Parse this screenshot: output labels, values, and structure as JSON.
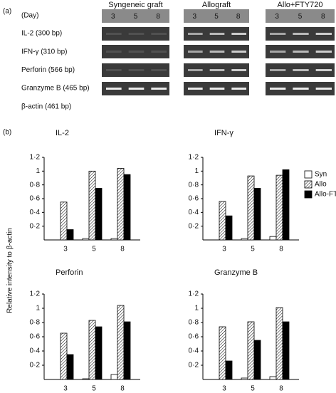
{
  "gel": {
    "panel_label": "(a)",
    "headers": [
      "Syngeneic graft",
      "Allograft",
      "Allo+FTY720"
    ],
    "day_label": "(Day)",
    "days": [
      [
        "3",
        "5",
        "8"
      ],
      [
        "3",
        "5",
        "8"
      ],
      [
        "3",
        "5",
        "8"
      ]
    ],
    "row_labels": [
      "IL-2 (300 bp)",
      "IFN-γ (310 bp)",
      "Perforin (566 bp)",
      "Granzyme B (465 bp)",
      "β-actin (461 bp)"
    ]
  },
  "panel_b_label": "(b)",
  "shared_ylabel": "Relative intensity to β-actin",
  "chart_data": [
    {
      "type": "bar",
      "title": "IL-2",
      "categories": [
        "3",
        "5",
        "8"
      ],
      "series": [
        {
          "color": "#ffffff",
          "values": [
            0,
            0.02,
            0.02
          ]
        },
        {
          "color": "#000000",
          "pattern": "hatch",
          "values": [
            0.55,
            1.0,
            1.04
          ]
        },
        {
          "color": "#000000",
          "values": [
            0.15,
            0.75,
            0.95
          ]
        }
      ],
      "ylim": [
        0,
        1.2
      ],
      "yticks": [
        {
          "value": 0.2,
          "label": "0·2"
        },
        {
          "value": 0.4,
          "label": "0·4"
        },
        {
          "value": 0.6,
          "label": "0·6"
        },
        {
          "value": 0.8,
          "label": "0·8"
        },
        1,
        {
          "value": 1.2,
          "label": "1·2"
        }
      ]
    },
    {
      "type": "bar",
      "title": "IFN-γ",
      "categories": [
        "3",
        "5",
        "8"
      ],
      "legend": "right",
      "series": [
        {
          "name": "Syn",
          "color": "#ffffff",
          "values": [
            0,
            0.02,
            0.05
          ]
        },
        {
          "name": "Allo",
          "color": "#000000",
          "pattern": "hatch",
          "values": [
            0.56,
            0.93,
            0.94
          ]
        },
        {
          "name": "Allo-FTY",
          "color": "#000000",
          "values": [
            0.35,
            0.75,
            1.02
          ]
        }
      ],
      "ylim": [
        0,
        1.2
      ],
      "yticks": [
        {
          "value": 0.2,
          "label": "0·2"
        },
        {
          "value": 0.4,
          "label": "0·4"
        },
        {
          "value": 0.6,
          "label": "0·6"
        },
        {
          "value": 0.8,
          "label": "0·8"
        },
        1,
        {
          "value": 1.2,
          "label": "1·2"
        }
      ]
    },
    {
      "type": "bar",
      "title": "Perforin",
      "categories": [
        "3",
        "5",
        "8"
      ],
      "series": [
        {
          "color": "#ffffff",
          "values": [
            0,
            0.01,
            0.07
          ]
        },
        {
          "color": "#000000",
          "pattern": "hatch",
          "values": [
            0.65,
            0.83,
            1.04
          ]
        },
        {
          "color": "#000000",
          "values": [
            0.35,
            0.74,
            0.81
          ]
        }
      ],
      "ylim": [
        0,
        1.2
      ],
      "yticks": [
        {
          "value": 0.2,
          "label": "0·2"
        },
        {
          "value": 0.4,
          "label": "0·4"
        },
        {
          "value": 0.6,
          "label": "0·6"
        },
        {
          "value": 0.8,
          "label": "0·8"
        },
        1,
        {
          "value": 1.2,
          "label": "1·2"
        }
      ]
    },
    {
      "type": "bar",
      "title": "Granzyme B",
      "categories": [
        "3",
        "5",
        "8"
      ],
      "series": [
        {
          "color": "#ffffff",
          "values": [
            0,
            0.02,
            0.04
          ]
        },
        {
          "color": "#000000",
          "pattern": "hatch",
          "values": [
            0.74,
            0.81,
            1.01
          ]
        },
        {
          "color": "#000000",
          "values": [
            0.26,
            0.55,
            0.81
          ]
        }
      ],
      "ylim": [
        0,
        1.2
      ],
      "yticks": [
        {
          "value": 0.2,
          "label": "0·2"
        },
        {
          "value": 0.4,
          "label": "0·4"
        },
        {
          "value": 0.6,
          "label": "0·6"
        },
        {
          "value": 0.8,
          "label": "0·8"
        },
        1,
        {
          "value": 1.2,
          "label": "1·2"
        }
      ]
    }
  ]
}
